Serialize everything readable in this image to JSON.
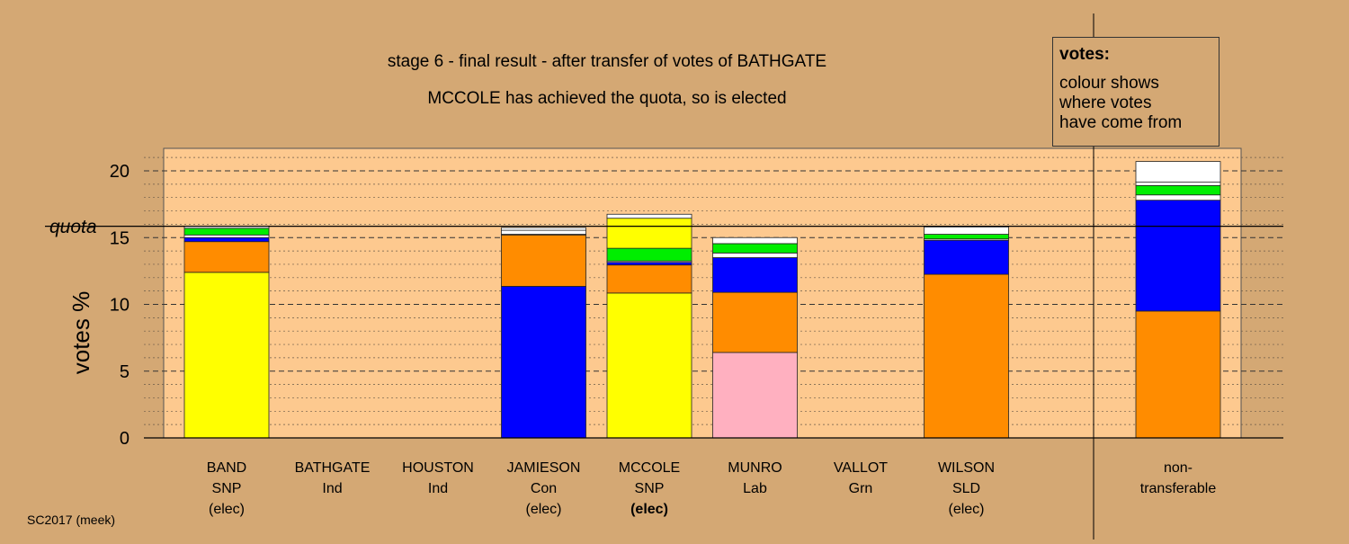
{
  "chart_data": {
    "type": "bar",
    "stacked": true,
    "title": "stage 6 - final result - after transfer of votes of BATHGATE",
    "subtitle": "MCCOLE has achieved the quota, so is elected",
    "ylabel": "votes %",
    "ylim": [
      0,
      21.5
    ],
    "yticks": [
      0,
      5,
      10,
      15,
      20
    ],
    "quota_label": "quota",
    "quota": 15.85,
    "footer": "SC2017 (meek)",
    "legend": {
      "title": "votes:",
      "lines": [
        "colour shows",
        "where votes",
        "have come from"
      ]
    },
    "colors": {
      "background": "#d4a874",
      "plot": "#fdc98f",
      "snp": "#ffff00",
      "con": "#0000ff",
      "lab": "#ff8c00",
      "sld": "#ff8c00",
      "grn": "#00ee00",
      "ind": "#ffffff",
      "pink": "#ffb0c0",
      "navy": "#000080"
    },
    "categories": [
      {
        "name": "BAND",
        "party": "SNP",
        "note": "(elec)",
        "note_bold": false,
        "segments": [
          {
            "color": "#ffff00",
            "value": 12.4
          },
          {
            "color": "#ff8c00",
            "value": 2.3
          },
          {
            "color": "#0000ff",
            "value": 0.3
          },
          {
            "color": "#ffffff",
            "value": 0.2
          },
          {
            "color": "#00ee00",
            "value": 0.5
          },
          {
            "color": "#ffffff",
            "value": 0.15
          }
        ]
      },
      {
        "name": "BATHGATE",
        "party": "Ind",
        "note": "",
        "note_bold": false,
        "segments": []
      },
      {
        "name": "HOUSTON",
        "party": "Ind",
        "note": "",
        "note_bold": false,
        "segments": []
      },
      {
        "name": "JAMIESON",
        "party": "Con",
        "note": "(elec)",
        "note_bold": false,
        "segments": [
          {
            "color": "#0000ff",
            "value": 11.35
          },
          {
            "color": "#ff8c00",
            "value": 3.85
          },
          {
            "color": "#00ee00",
            "value": 0.05
          },
          {
            "color": "#ffffff",
            "value": 0.3
          },
          {
            "color": "#ffffff",
            "value": 0.2
          }
        ]
      },
      {
        "name": "MCCOLE",
        "party": "SNP",
        "note": "(elec)",
        "note_bold": true,
        "segments": [
          {
            "color": "#ffff00",
            "value": 10.85
          },
          {
            "color": "#ff8c00",
            "value": 2.1
          },
          {
            "color": "#0000ff",
            "value": 0.2
          },
          {
            "color": "#ffffff",
            "value": 0.1
          },
          {
            "color": "#00ee00",
            "value": 0.95
          },
          {
            "color": "#ffff00",
            "value": 2.25
          },
          {
            "color": "#ffffff",
            "value": 0.3
          }
        ]
      },
      {
        "name": "MUNRO",
        "party": "Lab",
        "note": "",
        "note_bold": false,
        "segments": [
          {
            "color": "#ffb0c0",
            "value": 6.4
          },
          {
            "color": "#ff8c00",
            "value": 4.5
          },
          {
            "color": "#0000ff",
            "value": 2.6
          },
          {
            "color": "#ffffff",
            "value": 0.35
          },
          {
            "color": "#00ee00",
            "value": 0.7
          },
          {
            "color": "#ffffff",
            "value": 0.45
          }
        ]
      },
      {
        "name": "VALLOT",
        "party": "Grn",
        "note": "",
        "note_bold": false,
        "segments": []
      },
      {
        "name": "WILSON",
        "party": "SLD",
        "note": "(elec)",
        "note_bold": false,
        "segments": [
          {
            "color": "#ff8c00",
            "value": 12.25
          },
          {
            "color": "#0000ff",
            "value": 2.55
          },
          {
            "color": "#ffffff",
            "value": 0.1
          },
          {
            "color": "#00ee00",
            "value": 0.35
          },
          {
            "color": "#ffffff",
            "value": 0.55
          }
        ]
      },
      {
        "name": "non-",
        "party": "transferable",
        "note": "",
        "note_bold": false,
        "separate": true,
        "segments": [
          {
            "color": "#ff8c00",
            "value": 9.5
          },
          {
            "color": "#0000ff",
            "value": 8.3
          },
          {
            "color": "#ffffff",
            "value": 0.4
          },
          {
            "color": "#00ee00",
            "value": 0.7
          },
          {
            "color": "#ffffff",
            "value": 0.25
          },
          {
            "color": "#ffffff",
            "value": 1.55
          }
        ]
      }
    ]
  }
}
